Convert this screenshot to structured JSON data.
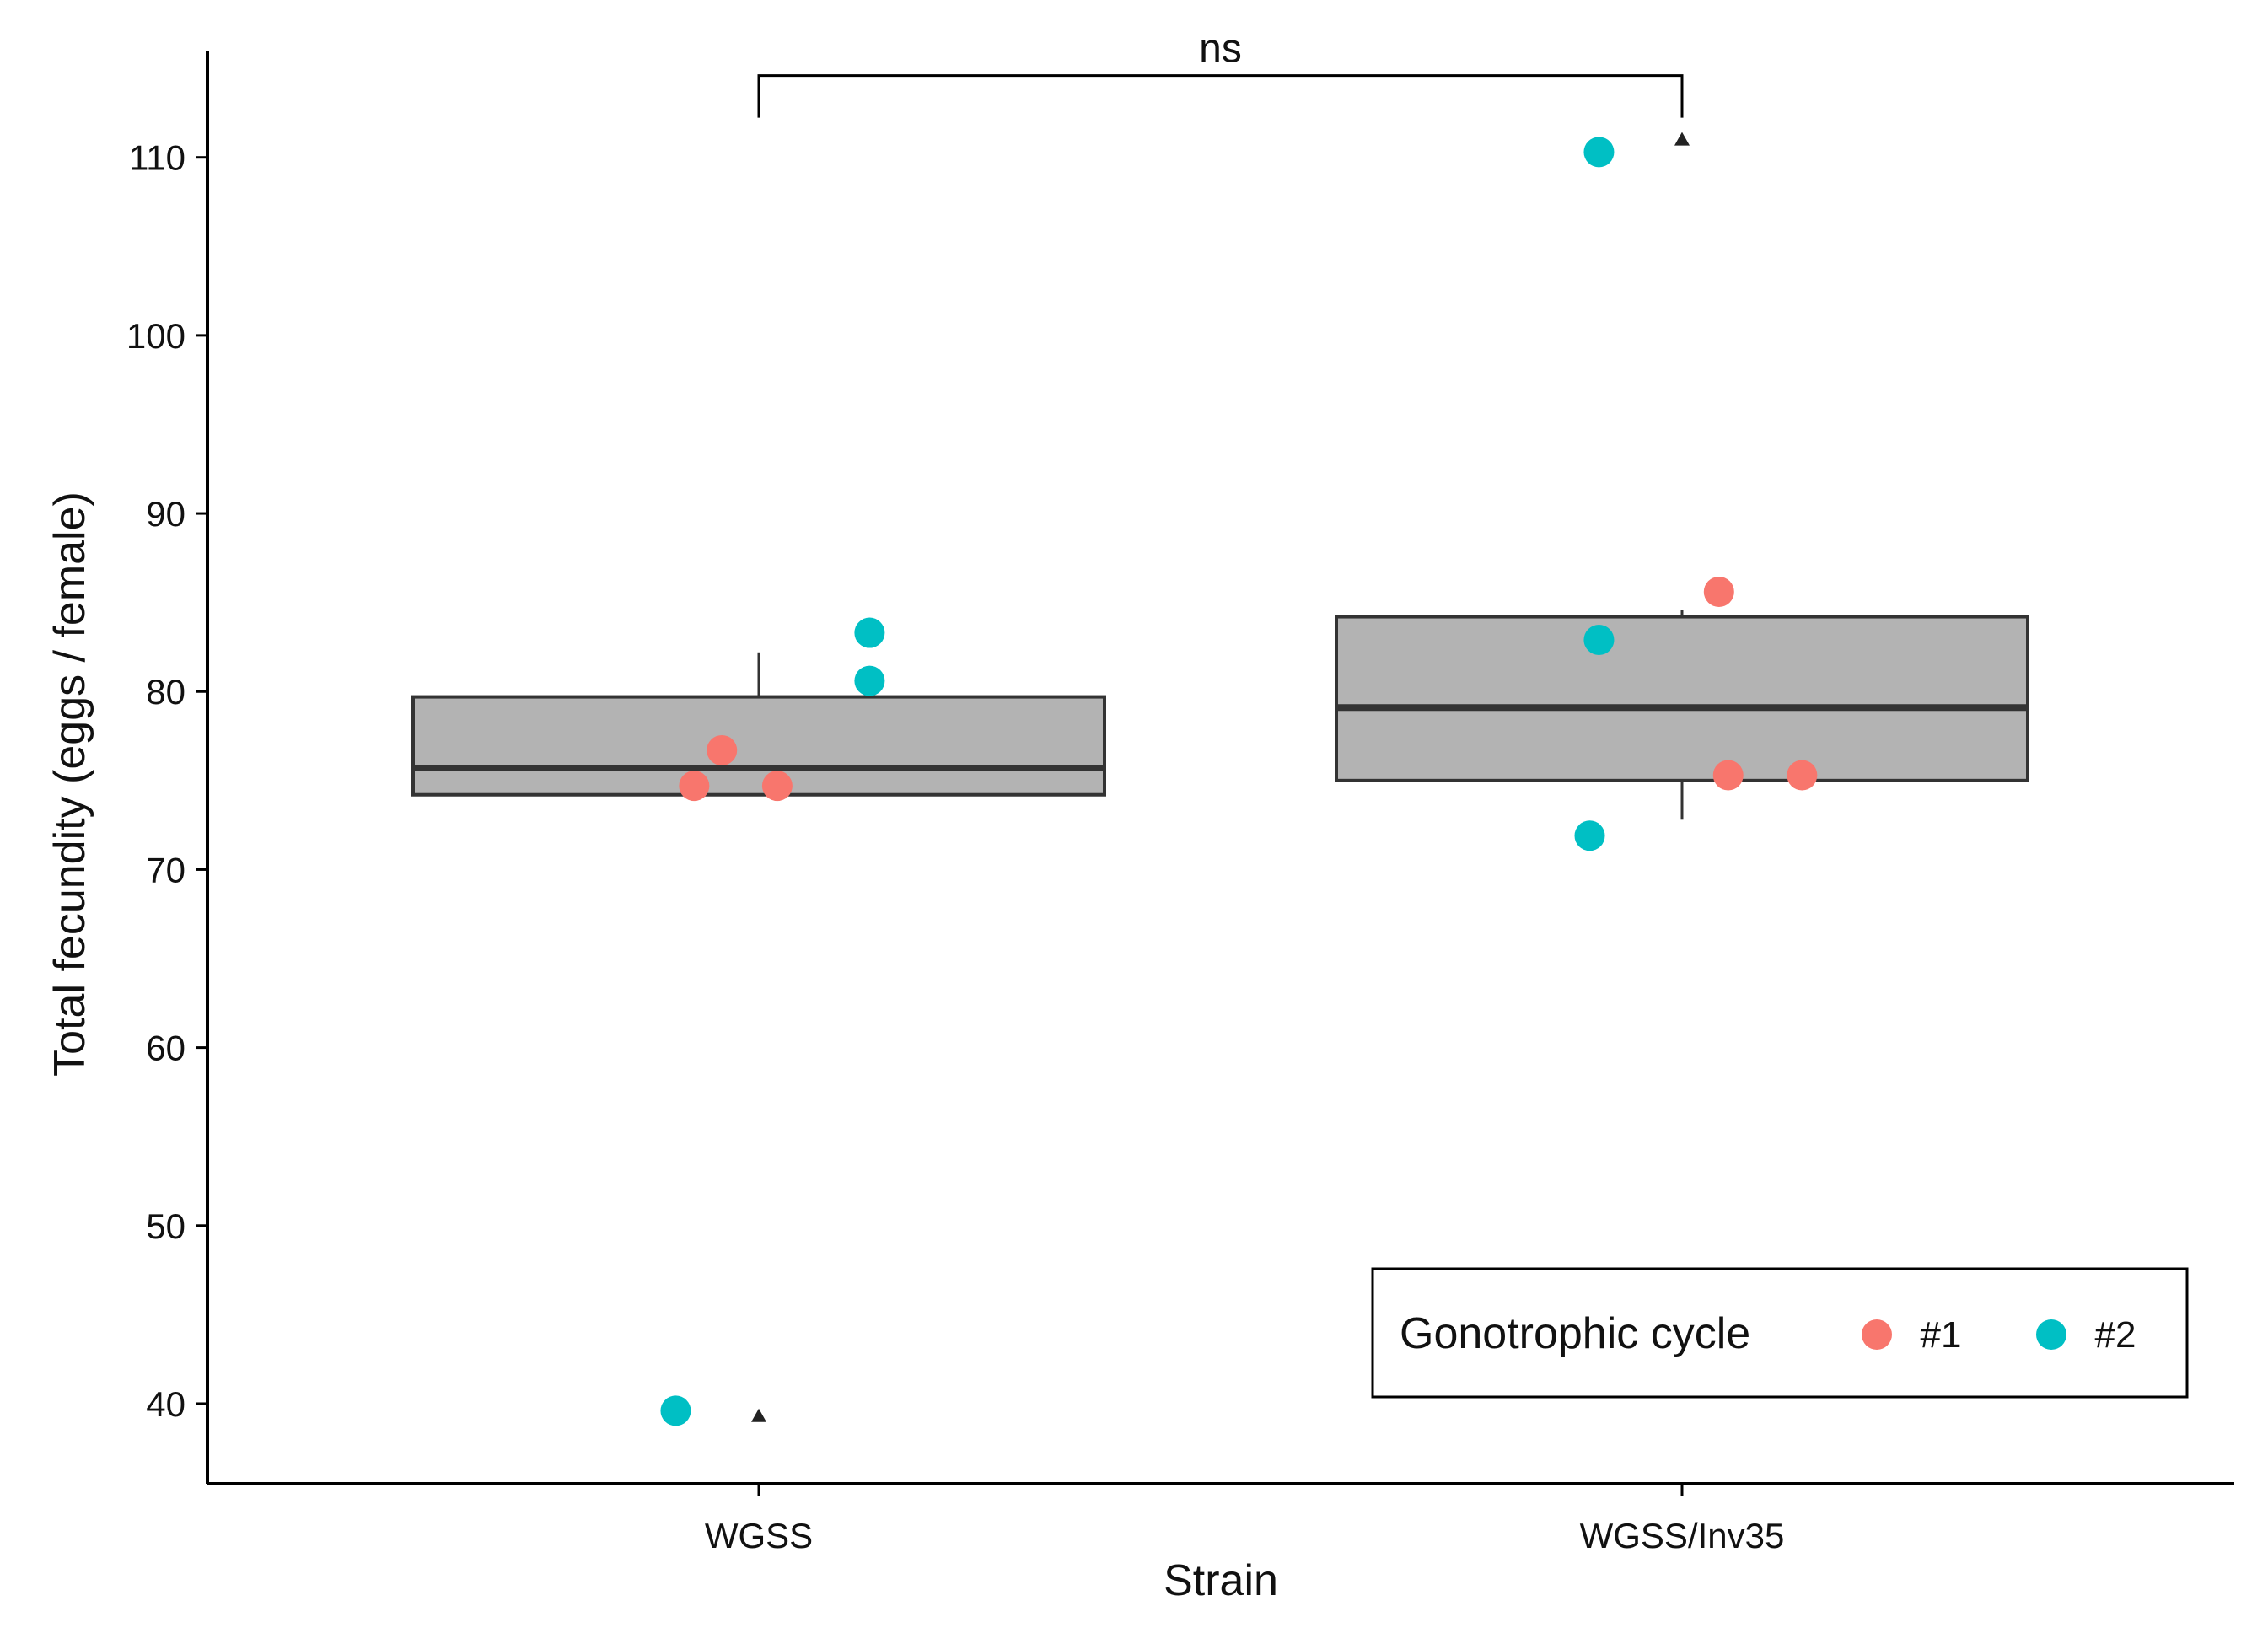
{
  "chart_data": {
    "type": "boxplot",
    "xlabel": "Strain",
    "ylabel": "Total fecundity (eggs / female)",
    "categories": [
      "WGSS",
      "WGSS/Inv35"
    ],
    "ylim": [
      35.5,
      116
    ],
    "yticks": [
      40,
      50,
      60,
      70,
      80,
      90,
      100,
      110
    ],
    "boxes": [
      {
        "category": "WGSS",
        "lower_whisker": 74.2,
        "q1": 74.2,
        "median": 75.7,
        "q3": 79.7,
        "upper_whisker": 82.2,
        "mean": 39.3
      },
      {
        "category": "WGSS/Inv35",
        "lower_whisker": 72.8,
        "q1": 75.0,
        "median": 79.1,
        "q3": 84.2,
        "upper_whisker": 84.6,
        "mean": 111.0
      }
    ],
    "points": [
      {
        "category": "WGSS",
        "jitter": -0.07,
        "y": 74.7,
        "cycle": "#1"
      },
      {
        "category": "WGSS",
        "jitter": -0.04,
        "y": 76.7,
        "cycle": "#1"
      },
      {
        "category": "WGSS",
        "jitter": 0.02,
        "y": 74.7,
        "cycle": "#1"
      },
      {
        "category": "WGSS",
        "jitter": 0.12,
        "y": 83.3,
        "cycle": "#2"
      },
      {
        "category": "WGSS",
        "jitter": 0.12,
        "y": 80.6,
        "cycle": "#2"
      },
      {
        "category": "WGSS",
        "jitter": -0.09,
        "y": 39.6,
        "cycle": "#2"
      },
      {
        "category": "WGSS/Inv35",
        "jitter": 0.04,
        "y": 85.6,
        "cycle": "#1"
      },
      {
        "category": "WGSS/Inv35",
        "jitter": 0.05,
        "y": 75.3,
        "cycle": "#1"
      },
      {
        "category": "WGSS/Inv35",
        "jitter": 0.13,
        "y": 75.3,
        "cycle": "#1"
      },
      {
        "category": "WGSS/Inv35",
        "jitter": -0.09,
        "y": 110.3,
        "cycle": "#2"
      },
      {
        "category": "WGSS/Inv35",
        "jitter": -0.09,
        "y": 82.9,
        "cycle": "#2"
      },
      {
        "category": "WGSS/Inv35",
        "jitter": -0.1,
        "y": 71.9,
        "cycle": "#2"
      }
    ],
    "significance": {
      "from": "WGSS",
      "to": "WGSS/Inv35",
      "label": "ns",
      "y": 114.6
    },
    "legend": {
      "title": "Gonotrophic cycle",
      "position": "bottom-right",
      "items": [
        {
          "label": "#1",
          "color": "#F8766D"
        },
        {
          "label": "#2",
          "color": "#00BFC4"
        }
      ]
    },
    "colors": {
      "box_fill": "#b3b3b3",
      "box_stroke": "#333333",
      "cycle_1": "#F8766D",
      "cycle_2": "#00BFC4"
    }
  }
}
